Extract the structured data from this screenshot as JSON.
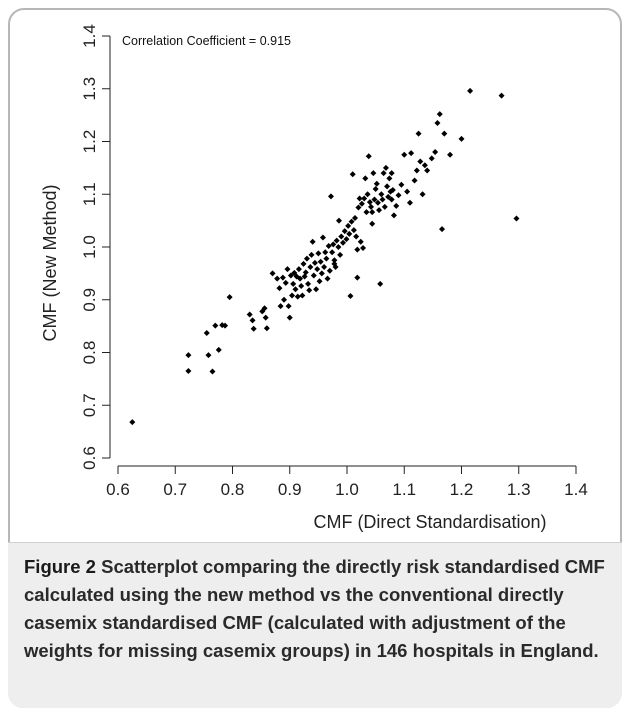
{
  "chart_data": {
    "type": "scatter",
    "annotation": "Correlation Coefficient = 0.915",
    "xlabel": "CMF (Direct Standardisation)",
    "ylabel": "CMF (New Method)",
    "xlim": [
      0.6,
      1.4
    ],
    "ylim": [
      0.6,
      1.4
    ],
    "xticks": [
      "0.6",
      "0.7",
      "0.8",
      "0.9",
      "1.0",
      "1.1",
      "1.2",
      "1.3",
      "1.4"
    ],
    "yticks": [
      "0.6",
      "0.7",
      "0.8",
      "0.9",
      "1.0",
      "1.1",
      "1.2",
      "1.3",
      "1.4"
    ],
    "grid": false,
    "point_color": "#000000",
    "points": [
      [
        0.625,
        0.668
      ],
      [
        0.723,
        0.795
      ],
      [
        0.723,
        0.765
      ],
      [
        0.755,
        0.837
      ],
      [
        0.758,
        0.795
      ],
      [
        0.765,
        0.764
      ],
      [
        0.77,
        0.851
      ],
      [
        0.776,
        0.805
      ],
      [
        0.782,
        0.852
      ],
      [
        0.787,
        0.851
      ],
      [
        0.795,
        0.905
      ],
      [
        0.83,
        0.872
      ],
      [
        0.835,
        0.861
      ],
      [
        0.837,
        0.845
      ],
      [
        0.852,
        0.878
      ],
      [
        0.856,
        0.884
      ],
      [
        0.858,
        0.866
      ],
      [
        0.86,
        0.846
      ],
      [
        0.87,
        0.95
      ],
      [
        0.878,
        0.94
      ],
      [
        0.882,
        0.922
      ],
      [
        0.884,
        0.888
      ],
      [
        0.888,
        0.942
      ],
      [
        0.89,
        0.9
      ],
      [
        0.893,
        0.932
      ],
      [
        0.896,
        0.958
      ],
      [
        0.898,
        0.888
      ],
      [
        0.9,
        0.866
      ],
      [
        0.902,
        0.946
      ],
      [
        0.904,
        0.908
      ],
      [
        0.906,
        0.93
      ],
      [
        0.908,
        0.951
      ],
      [
        0.91,
        0.92
      ],
      [
        0.912,
        0.944
      ],
      [
        0.914,
        0.906
      ],
      [
        0.916,
        0.958
      ],
      [
        0.918,
        0.94
      ],
      [
        0.92,
        0.926
      ],
      [
        0.922,
        0.908
      ],
      [
        0.924,
        0.968
      ],
      [
        0.926,
        0.944
      ],
      [
        0.928,
        0.952
      ],
      [
        0.93,
        0.978
      ],
      [
        0.932,
        0.93
      ],
      [
        0.934,
        0.918
      ],
      [
        0.936,
        0.962
      ],
      [
        0.938,
        0.985
      ],
      [
        0.94,
        1.01
      ],
      [
        0.942,
        0.946
      ],
      [
        0.944,
        0.97
      ],
      [
        0.946,
        0.92
      ],
      [
        0.948,
        0.958
      ],
      [
        0.95,
        0.988
      ],
      [
        0.952,
        0.935
      ],
      [
        0.954,
        0.972
      ],
      [
        0.956,
        0.95
      ],
      [
        0.958,
        1.018
      ],
      [
        0.96,
        0.962
      ],
      [
        0.962,
        0.99
      ],
      [
        0.964,
        0.978
      ],
      [
        0.966,
        0.94
      ],
      [
        0.968,
        1.002
      ],
      [
        0.97,
        0.955
      ],
      [
        0.972,
        1.096
      ],
      [
        0.974,
        0.99
      ],
      [
        0.976,
        1.005
      ],
      [
        0.978,
        0.975
      ],
      [
        0.98,
        0.962
      ],
      [
        0.982,
        1.012
      ],
      [
        0.985,
        1.0
      ],
      [
        0.988,
        0.985
      ],
      [
        0.99,
        1.02
      ],
      [
        0.993,
        1.008
      ],
      [
        0.996,
        1.03
      ],
      [
        0.999,
        1.015
      ],
      [
        1.002,
        1.04
      ],
      [
        1.004,
        1.025
      ],
      [
        1.006,
        0.907
      ],
      [
        1.008,
        1.048
      ],
      [
        1.01,
        1.138
      ],
      [
        1.012,
        1.032
      ],
      [
        1.014,
        1.055
      ],
      [
        1.016,
        1.02
      ],
      [
        1.018,
        0.942
      ],
      [
        1.018,
        0.995
      ],
      [
        1.02,
        1.075
      ],
      [
        1.022,
        1.092
      ],
      [
        1.024,
        1.01
      ],
      [
        1.026,
        1.082
      ],
      [
        1.028,
        0.998
      ],
      [
        1.03,
        1.092
      ],
      [
        1.032,
        1.13
      ],
      [
        1.034,
        1.066
      ],
      [
        1.036,
        1.1
      ],
      [
        1.038,
        1.172
      ],
      [
        1.04,
        1.085
      ],
      [
        1.042,
        1.076
      ],
      [
        1.044,
        1.044
      ],
      [
        1.046,
        1.14
      ],
      [
        1.048,
        1.09
      ],
      [
        1.05,
        1.11
      ],
      [
        1.052,
        1.12
      ],
      [
        1.054,
        1.084
      ],
      [
        1.056,
        1.07
      ],
      [
        1.058,
        0.93
      ],
      [
        1.06,
        1.1
      ],
      [
        1.062,
        1.09
      ],
      [
        1.064,
        1.14
      ],
      [
        1.066,
        1.076
      ],
      [
        1.068,
        1.15
      ],
      [
        1.07,
        1.115
      ],
      [
        1.072,
        1.095
      ],
      [
        1.074,
        1.13
      ],
      [
        1.076,
        1.105
      ],
      [
        1.078,
        1.09
      ],
      [
        1.08,
        1.108
      ],
      [
        1.082,
        1.06
      ],
      [
        1.086,
        1.078
      ],
      [
        1.09,
        1.098
      ],
      [
        1.095,
        1.118
      ],
      [
        1.1,
        1.175
      ],
      [
        1.105,
        1.105
      ],
      [
        1.11,
        1.084
      ],
      [
        1.112,
        1.178
      ],
      [
        1.118,
        1.126
      ],
      [
        1.122,
        1.145
      ],
      [
        1.125,
        1.215
      ],
      [
        1.128,
        1.162
      ],
      [
        1.132,
        1.1
      ],
      [
        1.136,
        1.155
      ],
      [
        1.14,
        1.145
      ],
      [
        1.148,
        1.168
      ],
      [
        1.154,
        1.18
      ],
      [
        1.158,
        1.235
      ],
      [
        1.162,
        1.252
      ],
      [
        1.166,
        1.034
      ],
      [
        1.17,
        1.215
      ],
      [
        1.18,
        1.175
      ],
      [
        1.2,
        1.205
      ],
      [
        1.215,
        1.296
      ],
      [
        1.27,
        1.287
      ],
      [
        1.296,
        1.054
      ],
      [
        1.078,
        1.14
      ],
      [
        0.986,
        1.05
      ],
      [
        0.978,
        0.968
      ],
      [
        1.044,
        1.066
      ]
    ]
  },
  "caption": {
    "label": "Figure 2",
    "text": " Scatterplot comparing the directly risk standardised CMF calculated using the new method vs the conventional directly casemix standardised CMF (calculated with adjustment of the weights for missing casemix groups) in 146 hospitals in England."
  }
}
